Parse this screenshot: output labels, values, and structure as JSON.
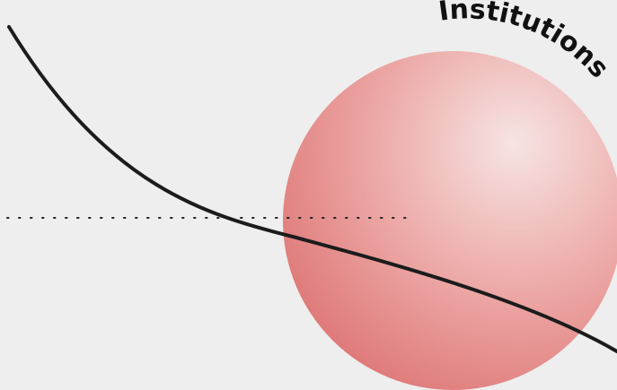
{
  "label": {
    "text": "Institutions"
  },
  "colors": {
    "background": "#eeeeee",
    "sphere_highlight": "#f6e4e3",
    "sphere_mid": "#eca8a6",
    "sphere_edge": "#df7b7a",
    "curve": "#1c1c1c",
    "dotted_line": "#222222",
    "label": "#111111"
  }
}
